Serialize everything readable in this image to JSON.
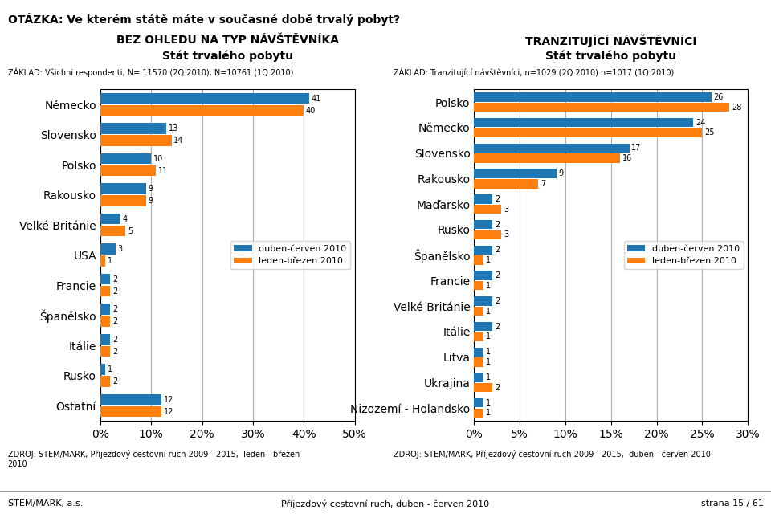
{
  "title": "OTÁZKA: Ve kterém státě máte v současné době trvalý pobyt?",
  "annotations": [
    "STEM/MARK, a.s.",
    "Příjezdový cestovní ruch, duben - červen 2010",
    "strana 15 / 61"
  ],
  "chart_data": [
    {
      "type": "bar",
      "orientation": "horizontal",
      "title": "BEZ OHLEDU NA TYP NÁVŠTĚVNÍKA",
      "subtitle": "Stát trvalého pobytu",
      "annotations": [
        "ZÁKLAD: Všichni respondenti, N= 11570 (2Q 2010), N=10761 (1Q 2010)",
        "ZDROJ: STEM/MARK, Příjezdový cestovní ruch 2009 - 2015,  leden - březen\n2010"
      ],
      "categories": [
        "Německo",
        "Slovensko",
        "Polsko",
        "Rakousko",
        "Velké Británie",
        "USA",
        "Francie",
        "Španělsko",
        "Itálie",
        "Rusko",
        "Ostatní"
      ],
      "series": [
        {
          "name": "duben-červen 2010",
          "values": [
            41,
            13,
            10,
            9,
            4,
            3,
            2,
            2,
            2,
            1,
            12
          ]
        },
        {
          "name": "leden-březen 2010",
          "values": [
            40,
            14,
            11,
            9,
            5,
            1,
            2,
            2,
            2,
            2,
            12
          ]
        }
      ],
      "xlim": [
        0,
        50
      ],
      "xticks": [
        {
          "value": 0,
          "label": "0%"
        },
        {
          "value": 10,
          "label": "10%"
        },
        {
          "value": 20,
          "label": "20%"
        },
        {
          "value": 30,
          "label": "30%"
        },
        {
          "value": 40,
          "label": "40%"
        },
        {
          "value": 50,
          "label": "50%"
        }
      ],
      "grid": true,
      "legend": "center right",
      "data_labels": true
    },
    {
      "type": "bar",
      "orientation": "horizontal",
      "title": "TRANZITUJÍCÍ NÁVŠTĚVNÍCI",
      "subtitle": "Stát trvalého pobytu",
      "annotations": [
        "ZÁKLAD: Tranzitující návštěvníci, n=1029 (2Q 2010) n=1017 (1Q 2010)",
        "ZDROJ: STEM/MARK, Příjezdový cestovní ruch 2009 - 2015,  duben - červen 2010"
      ],
      "categories": [
        "Polsko",
        "Německo",
        "Slovensko",
        "Rakousko",
        "Maďarsko",
        "Rusko",
        "Španělsko",
        "Francie",
        "Velké Británie",
        "Itálie",
        "Litva",
        "Ukrajina",
        "Nizozemí - Holandsko"
      ],
      "series": [
        {
          "name": "duben-červen 2010",
          "values": [
            26,
            24,
            17,
            9,
            2,
            2,
            2,
            2,
            2,
            2,
            1,
            1,
            1
          ]
        },
        {
          "name": "leden-březen 2010",
          "values": [
            28,
            25,
            16,
            7,
            3,
            3,
            1,
            1,
            1,
            1,
            1,
            2,
            1
          ]
        }
      ],
      "xlim": [
        0,
        30
      ],
      "xticks": [
        {
          "value": 0,
          "label": "0%"
        },
        {
          "value": 5,
          "label": "5%"
        },
        {
          "value": 10,
          "label": "10%"
        },
        {
          "value": 15,
          "label": "15%"
        },
        {
          "value": 20,
          "label": "20%"
        },
        {
          "value": 25,
          "label": "25%"
        },
        {
          "value": 30,
          "label": "30%"
        }
      ],
      "grid": true,
      "legend": "center right",
      "data_labels": true
    }
  ]
}
